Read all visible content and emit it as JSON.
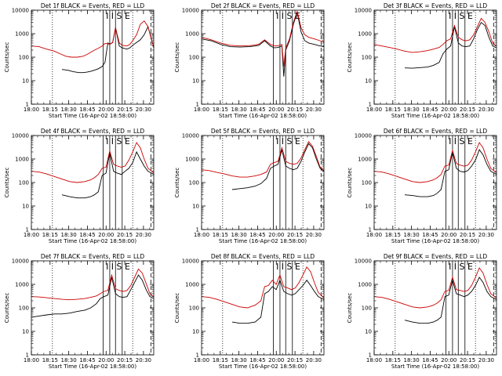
{
  "figure": {
    "xlabel": "Start Time (16-Apr-02 18:58:00)",
    "ylabel": "Counts/sec",
    "y_tick_labels": [
      "1",
      "10",
      "100",
      "1000",
      "10000"
    ],
    "x_tick_labels": [
      "18:00",
      "18:15",
      "18:30",
      "18:45",
      "20:00",
      "20:15",
      "20:30"
    ],
    "event_markers_text": "I  I  S  E"
  },
  "chart_data": [
    {
      "type": "line",
      "title": "Det 1f BLACK = Events, RED = LLD",
      "ylim": [
        1,
        10000
      ],
      "yscale": "log",
      "x_time_range": [
        "18:00",
        "20:38"
      ],
      "series": [
        {
          "color": "#000000",
          "x": [
            32,
            38,
            44,
            50,
            54,
            58,
            62,
            66,
            70,
            74,
            77,
            80,
            82,
            85,
            88,
            92,
            95,
            100,
            103,
            106,
            110,
            114,
            118,
            122,
            126,
            128
          ],
          "y": [
            30,
            28,
            24,
            22,
            22,
            23,
            25,
            28,
            32,
            40,
            60,
            400,
            360,
            420,
            1800,
            300,
            250,
            220,
            250,
            320,
            420,
            550,
            900,
            2000,
            500,
            250
          ]
        },
        {
          "color": "#cc0000",
          "x": [
            0,
            8,
            16,
            24,
            30,
            36,
            42,
            48,
            54,
            58,
            62,
            66,
            70,
            74,
            77,
            80,
            82,
            85,
            88,
            92,
            95,
            100,
            103,
            106,
            110,
            114,
            118,
            122,
            126,
            128
          ],
          "y": [
            300,
            280,
            220,
            180,
            140,
            110,
            100,
            100,
            110,
            130,
            160,
            200,
            240,
            300,
            380,
            380,
            350,
            420,
            1800,
            400,
            320,
            300,
            350,
            500,
            900,
            2500,
            3500,
            2000,
            500,
            250
          ]
        }
      ]
    },
    {
      "type": "line",
      "title": "Det 2f BLACK = Events, RED = LLD",
      "ylim": [
        1,
        10000
      ],
      "yscale": "log",
      "x_time_range": [
        "18:00",
        "20:38"
      ],
      "series": [
        {
          "color": "#000000",
          "x": [
            0,
            10,
            20,
            30,
            40,
            50,
            56,
            60,
            66,
            72,
            76,
            80,
            84,
            86,
            88,
            92,
            96,
            100,
            104,
            108,
            112,
            118,
            124,
            128
          ],
          "y": [
            600,
            500,
            350,
            280,
            270,
            280,
            300,
            320,
            500,
            300,
            250,
            260,
            300,
            15,
            200,
            500,
            2500,
            8000,
            1200,
            500,
            400,
            350,
            300,
            280
          ]
        },
        {
          "color": "#cc0000",
          "x": [
            0,
            10,
            20,
            30,
            40,
            50,
            56,
            60,
            66,
            72,
            76,
            80,
            84,
            86,
            88,
            92,
            96,
            100,
            104,
            108,
            112,
            118,
            124,
            128
          ],
          "y": [
            700,
            550,
            400,
            320,
            300,
            310,
            330,
            360,
            550,
            350,
            300,
            310,
            350,
            40,
            250,
            600,
            3000,
            9000,
            1800,
            900,
            700,
            600,
            500,
            450
          ]
        }
      ]
    },
    {
      "type": "line",
      "title": "Det 3f BLACK = Events, RED = LLD",
      "ylim": [
        1,
        10000
      ],
      "yscale": "log",
      "x_time_range": [
        "18:00",
        "20:38"
      ],
      "series": [
        {
          "color": "#000000",
          "x": [
            32,
            40,
            48,
            56,
            62,
            68,
            72,
            76,
            80,
            84,
            88,
            92,
            96,
            100,
            104,
            108,
            112,
            116,
            120,
            124,
            128
          ],
          "y": [
            35,
            34,
            36,
            38,
            45,
            60,
            140,
            220,
            300,
            2000,
            400,
            300,
            280,
            300,
            600,
            1500,
            3000,
            2200,
            700,
            300,
            250
          ]
        },
        {
          "color": "#cc0000",
          "x": [
            0,
            8,
            16,
            24,
            32,
            40,
            48,
            56,
            62,
            68,
            72,
            76,
            80,
            84,
            88,
            92,
            96,
            100,
            104,
            108,
            112,
            116,
            120,
            124,
            128
          ],
          "y": [
            350,
            300,
            260,
            220,
            180,
            160,
            170,
            190,
            220,
            260,
            350,
            500,
            600,
            2200,
            700,
            550,
            500,
            550,
            900,
            2000,
            4500,
            3000,
            1200,
            400,
            300
          ]
        }
      ]
    },
    {
      "type": "line",
      "title": "Det 4f BLACK = Events, RED = LLD",
      "ylim": [
        1,
        10000
      ],
      "yscale": "log",
      "x_time_range": [
        "18:00",
        "20:38"
      ],
      "series": [
        {
          "color": "#000000",
          "x": [
            32,
            40,
            48,
            56,
            62,
            66,
            70,
            74,
            78,
            82,
            86,
            90,
            94,
            98,
            102,
            106,
            110,
            114,
            118,
            122,
            126,
            128
          ],
          "y": [
            30,
            25,
            22,
            22,
            25,
            30,
            40,
            200,
            250,
            1800,
            300,
            250,
            220,
            300,
            400,
            700,
            2000,
            1000,
            500,
            300,
            250,
            220
          ]
        },
        {
          "color": "#cc0000",
          "x": [
            0,
            8,
            16,
            24,
            32,
            40,
            48,
            56,
            62,
            66,
            70,
            74,
            78,
            82,
            86,
            90,
            94,
            98,
            102,
            106,
            110,
            114,
            118,
            122,
            126,
            128
          ],
          "y": [
            300,
            280,
            230,
            180,
            140,
            110,
            100,
            110,
            130,
            160,
            220,
            400,
            450,
            2200,
            600,
            500,
            450,
            500,
            900,
            2000,
            5000,
            3000,
            1000,
            400,
            300,
            250
          ]
        }
      ]
    },
    {
      "type": "line",
      "title": "Det 5f BLACK = Events, RED = LLD",
      "ylim": [
        1,
        10000
      ],
      "yscale": "log",
      "x_time_range": [
        "18:00",
        "20:38"
      ],
      "series": [
        {
          "color": "#000000",
          "x": [
            32,
            40,
            48,
            56,
            62,
            68,
            72,
            76,
            80,
            84,
            88,
            92,
            96,
            100,
            104,
            108,
            112,
            116,
            120,
            124,
            128
          ],
          "y": [
            50,
            55,
            60,
            70,
            90,
            150,
            400,
            500,
            600,
            2500,
            500,
            400,
            350,
            400,
            800,
            2000,
            4500,
            3000,
            1000,
            400,
            300
          ]
        },
        {
          "color": "#cc0000",
          "x": [
            0,
            8,
            16,
            24,
            32,
            40,
            48,
            56,
            62,
            68,
            72,
            76,
            80,
            84,
            88,
            92,
            96,
            100,
            104,
            108,
            112,
            116,
            120,
            124,
            128
          ],
          "y": [
            350,
            320,
            270,
            230,
            190,
            170,
            170,
            190,
            220,
            280,
            600,
            700,
            800,
            3000,
            800,
            650,
            600,
            650,
            1100,
            2500,
            5500,
            3500,
            1300,
            450,
            320
          ]
        }
      ]
    },
    {
      "type": "line",
      "title": "Det 6f BLACK = Events, RED = LLD",
      "ylim": [
        1,
        10000
      ],
      "yscale": "log",
      "x_time_range": [
        "18:00",
        "20:38"
      ],
      "series": [
        {
          "color": "#000000",
          "x": [
            32,
            40,
            48,
            56,
            62,
            66,
            70,
            74,
            78,
            82,
            86,
            90,
            94,
            98,
            102,
            106,
            110,
            114,
            118,
            122,
            126,
            128
          ],
          "y": [
            30,
            28,
            25,
            25,
            28,
            35,
            50,
            300,
            350,
            2000,
            400,
            300,
            280,
            320,
            500,
            900,
            2500,
            1500,
            600,
            300,
            250,
            220
          ]
        },
        {
          "color": "#cc0000",
          "x": [
            0,
            8,
            16,
            24,
            32,
            40,
            48,
            56,
            62,
            66,
            70,
            74,
            78,
            82,
            86,
            90,
            94,
            98,
            102,
            106,
            110,
            114,
            118,
            122,
            126,
            128
          ],
          "y": [
            300,
            280,
            230,
            180,
            140,
            110,
            100,
            110,
            130,
            160,
            220,
            500,
            550,
            2300,
            650,
            550,
            500,
            550,
            900,
            2000,
            5000,
            3000,
            1000,
            400,
            300,
            250
          ]
        }
      ]
    },
    {
      "type": "line",
      "title": "Det 7f BLACK = Events, RED = LLD",
      "ylim": [
        1,
        10000
      ],
      "yscale": "log",
      "x_time_range": [
        "18:00",
        "20:38"
      ],
      "series": [
        {
          "color": "#000000",
          "x": [
            0,
            8,
            16,
            24,
            32,
            40,
            48,
            56,
            62,
            68,
            72,
            76,
            80,
            84,
            88,
            92,
            96,
            100,
            104,
            108,
            112,
            116,
            120,
            124,
            128
          ],
          "y": [
            40,
            45,
            50,
            55,
            55,
            60,
            70,
            80,
            100,
            150,
            250,
            300,
            350,
            2000,
            400,
            300,
            280,
            300,
            600,
            1200,
            2500,
            1500,
            600,
            300,
            250
          ]
        },
        {
          "color": "#cc0000",
          "x": [
            0,
            8,
            16,
            24,
            32,
            40,
            48,
            56,
            62,
            68,
            72,
            76,
            80,
            84,
            88,
            92,
            96,
            100,
            104,
            108,
            112,
            116,
            120,
            124,
            128
          ],
          "y": [
            300,
            290,
            270,
            250,
            230,
            220,
            230,
            250,
            280,
            320,
            400,
            500,
            550,
            2500,
            650,
            550,
            500,
            550,
            900,
            2000,
            4500,
            3000,
            1100,
            400,
            300
          ]
        }
      ]
    },
    {
      "type": "line",
      "title": "Det 8f BLACK = Events, RED = LLD",
      "ylim": [
        1,
        10000
      ],
      "yscale": "log",
      "x_time_range": [
        "18:00",
        "20:38"
      ],
      "series": [
        {
          "color": "#000000",
          "x": [
            32,
            40,
            48,
            56,
            62,
            66,
            70,
            74,
            78,
            82,
            86,
            90,
            94,
            98,
            102,
            106,
            110,
            114,
            118,
            122,
            126,
            128
          ],
          "y": [
            25,
            22,
            22,
            25,
            40,
            400,
            500,
            800,
            600,
            1500,
            500,
            400,
            350,
            400,
            600,
            900,
            1500,
            900,
            500,
            300,
            250,
            220
          ]
        },
        {
          "color": "#cc0000",
          "x": [
            0,
            8,
            16,
            24,
            32,
            40,
            48,
            56,
            62,
            66,
            70,
            74,
            78,
            82,
            86,
            90,
            94,
            98,
            102,
            106,
            110,
            114,
            118,
            122,
            126,
            128
          ],
          "y": [
            300,
            280,
            230,
            180,
            140,
            110,
            100,
            130,
            200,
            800,
            900,
            1500,
            1000,
            2500,
            800,
            700,
            600,
            700,
            1200,
            2500,
            5500,
            3500,
            1200,
            450,
            320,
            250
          ]
        }
      ]
    },
    {
      "type": "line",
      "title": "Det 9f BLACK = Events, RED = LLD",
      "ylim": [
        1,
        10000
      ],
      "yscale": "log",
      "x_time_range": [
        "18:00",
        "20:38"
      ],
      "series": [
        {
          "color": "#000000",
          "x": [
            32,
            40,
            48,
            56,
            62,
            66,
            70,
            74,
            78,
            82,
            86,
            90,
            94,
            98,
            102,
            106,
            110,
            114,
            118,
            122,
            126,
            128
          ],
          "y": [
            30,
            25,
            22,
            22,
            25,
            30,
            40,
            300,
            350,
            1500,
            400,
            350,
            300,
            350,
            500,
            900,
            2000,
            1200,
            500,
            300,
            250,
            220
          ]
        },
        {
          "color": "#cc0000",
          "x": [
            0,
            8,
            16,
            24,
            32,
            40,
            48,
            56,
            62,
            66,
            70,
            74,
            78,
            82,
            86,
            90,
            94,
            98,
            102,
            106,
            110,
            114,
            118,
            122,
            126,
            128
          ],
          "y": [
            300,
            280,
            230,
            180,
            140,
            110,
            100,
            110,
            130,
            160,
            220,
            500,
            550,
            2000,
            600,
            550,
            500,
            550,
            900,
            2000,
            5000,
            3000,
            1000,
            400,
            300,
            250
          ]
        }
      ]
    }
  ]
}
